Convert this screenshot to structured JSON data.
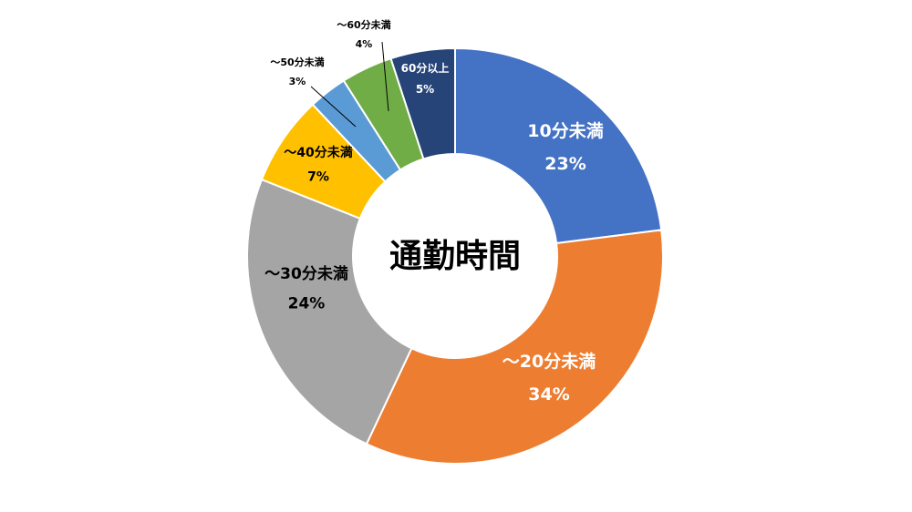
{
  "chart_data": {
    "type": "pie",
    "variant": "donut",
    "title": "通勤時間",
    "categories": [
      "10分未満",
      "～20分未満",
      "～30分未満",
      "～40分未満",
      "～50分未満",
      "～60分未満",
      "60分以上"
    ],
    "values": [
      23,
      34,
      24,
      7,
      3,
      4,
      5
    ],
    "value_labels": [
      "23%",
      "34%",
      "24%",
      "7%",
      "3%",
      "4%",
      "5%"
    ],
    "colors": [
      "#4472C4",
      "#ED7D31",
      "#A5A5A5",
      "#FFC000",
      "#5B9BD5",
      "#70AD47",
      "#264478"
    ],
    "label_colors": [
      "#ffffff",
      "#ffffff",
      "#000000",
      "#000000",
      "#000000",
      "#000000",
      "#ffffff"
    ],
    "legend": "none"
  }
}
